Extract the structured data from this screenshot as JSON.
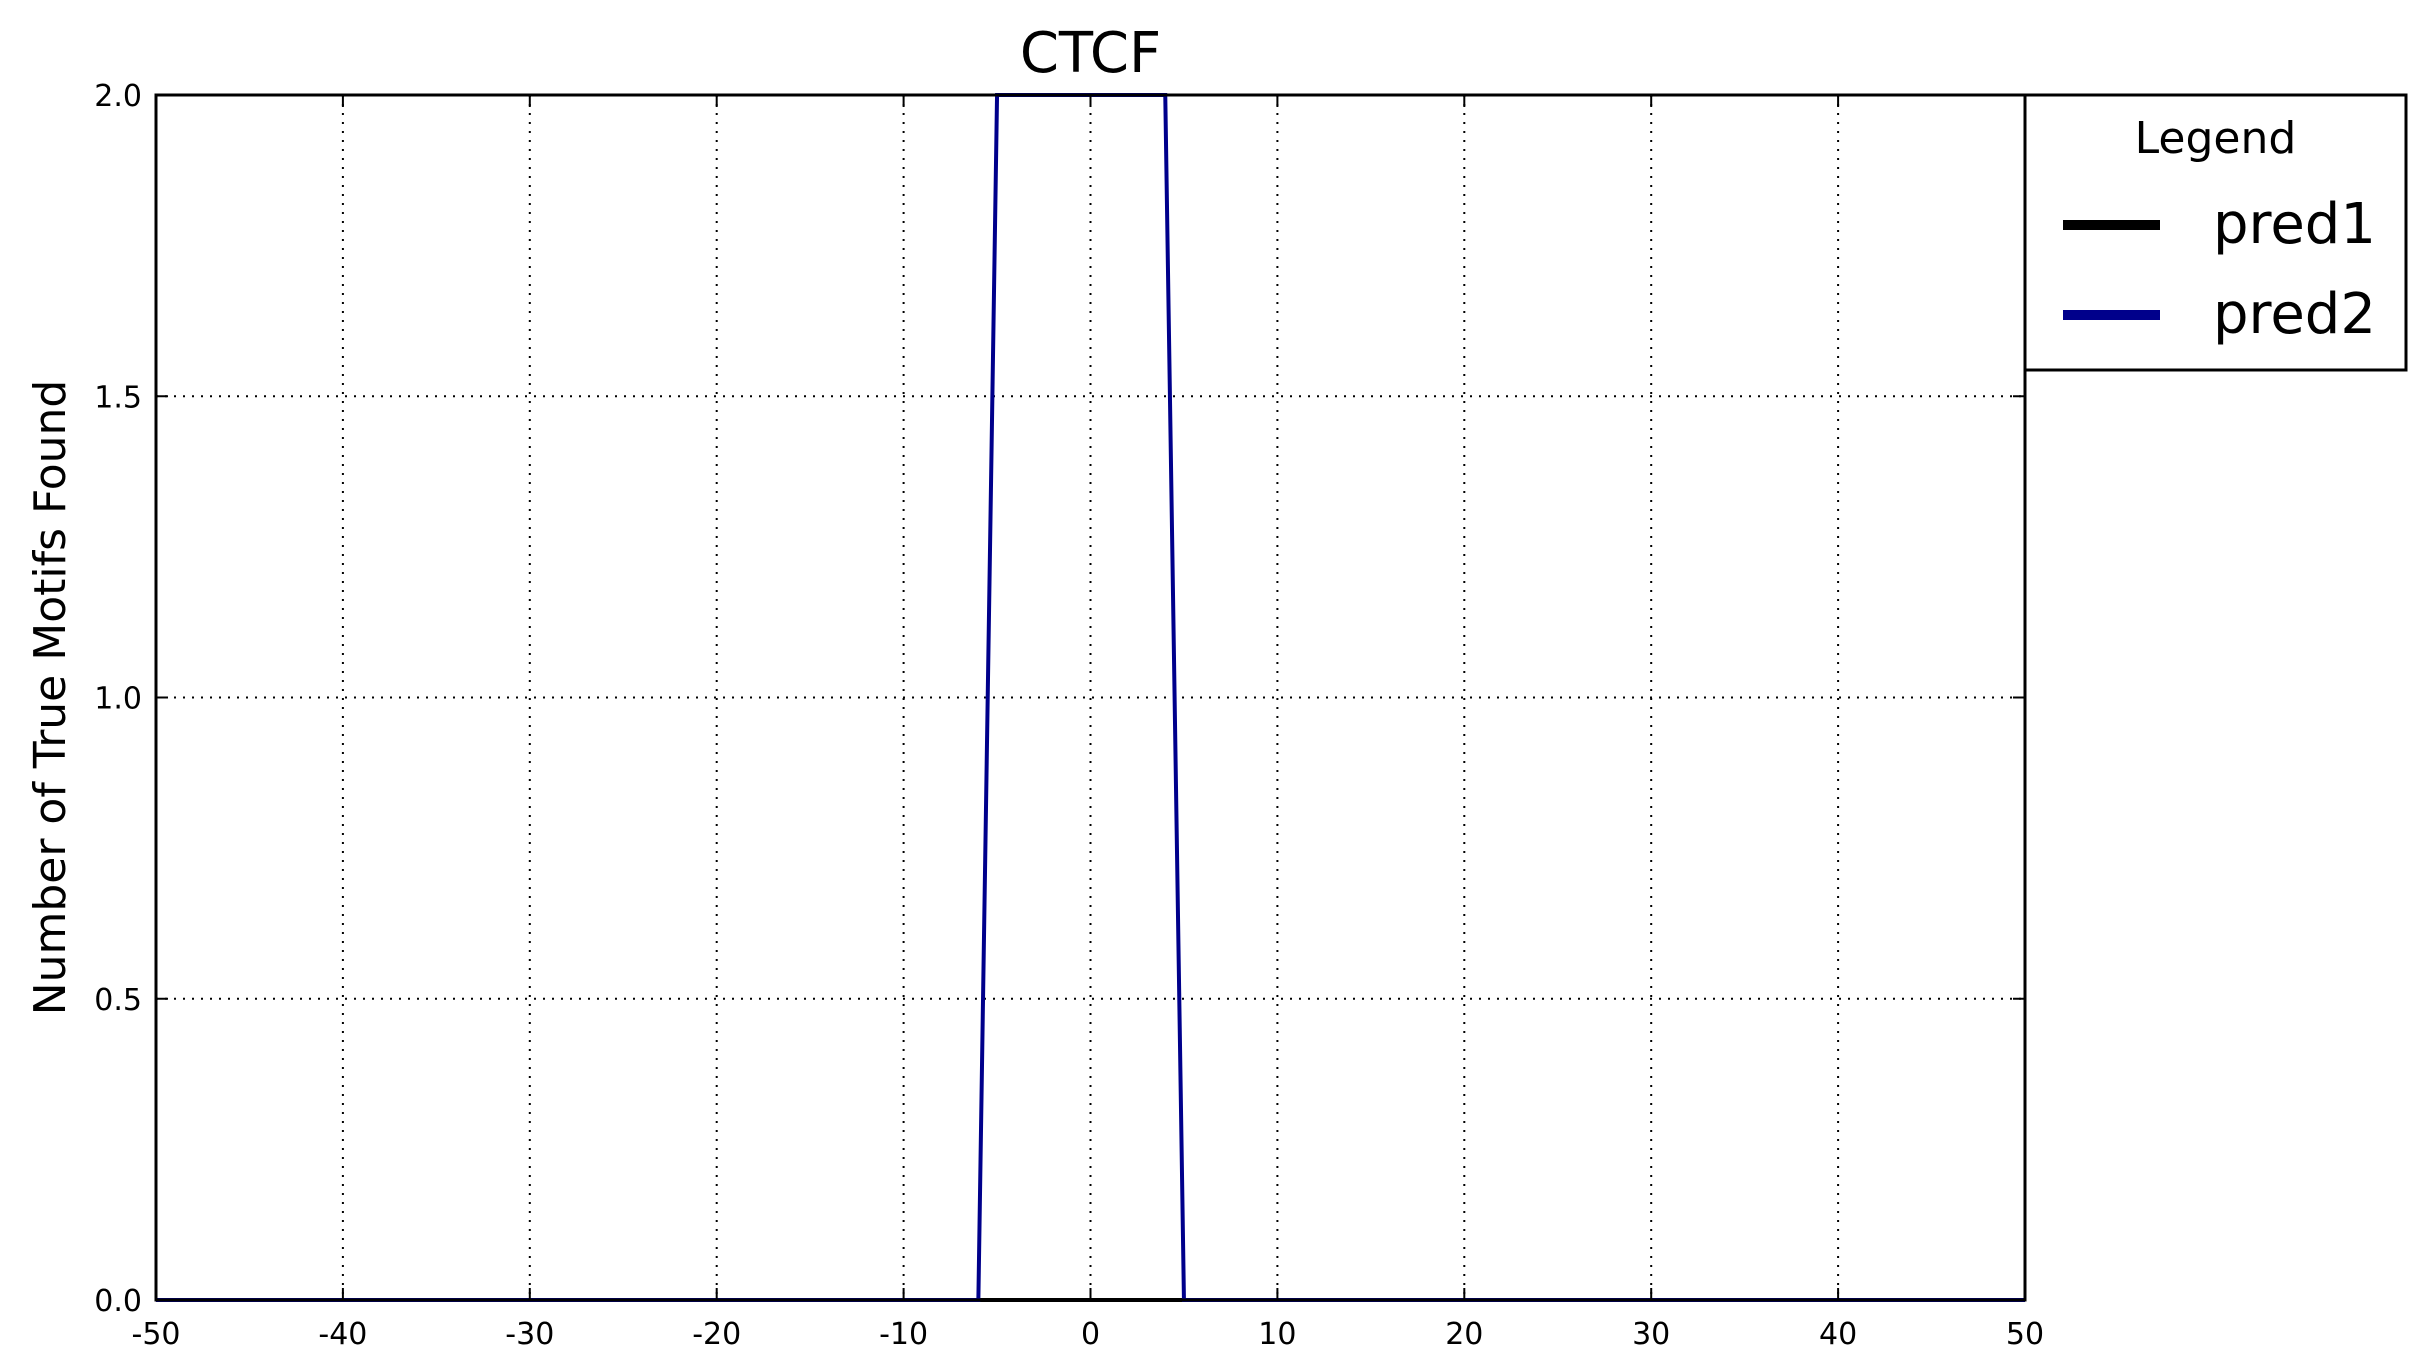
{
  "chart_data": {
    "type": "line",
    "title": "CTCF",
    "xlabel": "",
    "ylabel": "Number of True Motifs Found",
    "xlim": [
      -50,
      50
    ],
    "ylim": [
      0,
      2
    ],
    "xticks": [
      -50,
      -40,
      -30,
      -20,
      -10,
      0,
      10,
      20,
      30,
      40,
      50
    ],
    "yticks": [
      0.0,
      0.5,
      1.0,
      1.5,
      2.0
    ],
    "xtick_labels": [
      "-50",
      "-40",
      "-30",
      "-20",
      "-10",
      "0",
      "10",
      "20",
      "30",
      "40",
      "50"
    ],
    "ytick_labels": [
      "0.0",
      "0.5",
      "1.0",
      "1.5",
      "2.0"
    ],
    "grid": true,
    "legend": {
      "title": "Legend",
      "placement": "outside-right-top",
      "entries": [
        "pred1",
        "pred2"
      ]
    },
    "series": [
      {
        "name": "pred1",
        "color": "#000000",
        "x": [
          -50,
          50
        ],
        "y": [
          0,
          0
        ]
      },
      {
        "name": "pred2",
        "color": "#00008b",
        "x": [
          -50,
          -6,
          -5,
          4,
          5,
          50
        ],
        "y": [
          0,
          0,
          2,
          2,
          0,
          0
        ]
      }
    ]
  }
}
